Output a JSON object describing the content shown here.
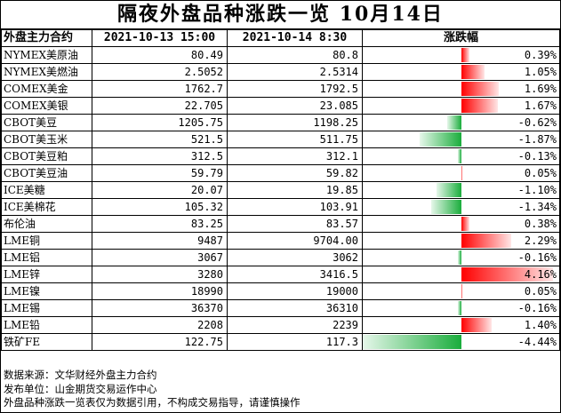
{
  "title": "隔夜外盘品种涨跌一览 10月14日",
  "table": {
    "headers": {
      "name": "外盘主力合约",
      "price1": "2021-10-13 15:00",
      "price2": "2021-10-14 8:30",
      "change": "涨跌幅"
    },
    "max_abs_change": 4.44,
    "rows": [
      {
        "name": "NYMEX美原油",
        "p1": "80.49",
        "p2": "80.8",
        "change": "0.39%",
        "pct": 0.39
      },
      {
        "name": "NYMEX美燃油",
        "p1": "2.5052",
        "p2": "2.5314",
        "change": "1.05%",
        "pct": 1.05
      },
      {
        "name": "COMEX美金",
        "p1": "1762.7",
        "p2": "1792.5",
        "change": "1.69%",
        "pct": 1.69
      },
      {
        "name": "COMEX美银",
        "p1": "22.705",
        "p2": "23.085",
        "change": "1.67%",
        "pct": 1.67
      },
      {
        "name": "CBOT美豆",
        "p1": "1205.75",
        "p2": "1198.25",
        "change": "-0.62%",
        "pct": -0.62
      },
      {
        "name": "CBOT美玉米",
        "p1": "521.5",
        "p2": "511.75",
        "change": "-1.87%",
        "pct": -1.87
      },
      {
        "name": "CBOT美豆粕",
        "p1": "312.5",
        "p2": "312.1",
        "change": "-0.13%",
        "pct": -0.13
      },
      {
        "name": "CBOT美豆油",
        "p1": "59.79",
        "p2": "59.82",
        "change": "0.05%",
        "pct": 0.05
      },
      {
        "name": "ICE美糖",
        "p1": "20.07",
        "p2": "19.85",
        "change": "-1.10%",
        "pct": -1.1
      },
      {
        "name": "ICE美棉花",
        "p1": "105.32",
        "p2": "103.91",
        "change": "-1.34%",
        "pct": -1.34
      },
      {
        "name": "布伦油",
        "p1": "83.25",
        "p2": "83.57",
        "change": "0.38%",
        "pct": 0.38
      },
      {
        "name": "LME铜",
        "p1": "9487",
        "p2": "9704.00",
        "change": "2.29%",
        "pct": 2.29
      },
      {
        "name": "LME铝",
        "p1": "3067",
        "p2": "3062",
        "change": "-0.16%",
        "pct": -0.16
      },
      {
        "name": "LME锌",
        "p1": "3280",
        "p2": "3416.5",
        "change": "4.16%",
        "pct": 4.16
      },
      {
        "name": "LME镍",
        "p1": "18990",
        "p2": "19000",
        "change": "0.05%",
        "pct": 0.05
      },
      {
        "name": "LME锡",
        "p1": "36370",
        "p2": "36310",
        "change": "-0.16%",
        "pct": -0.16
      },
      {
        "name": "LME铅",
        "p1": "2208",
        "p2": "2239",
        "change": "1.40%",
        "pct": 1.4
      },
      {
        "name": "铁矿FE",
        "p1": "122.75",
        "p2": "117.3",
        "change": "-4.44%",
        "pct": -4.44
      }
    ]
  },
  "notes": [
    "数据来源：文华财经外盘主力合约",
    "发布单位：山金期货交易运作中心",
    "外盘品种涨跌一览表仅为数据引用，不构成交易指导，请谨慎操作"
  ],
  "colors": {
    "positive": "#ff0000",
    "negative": "#1aad3c"
  }
}
